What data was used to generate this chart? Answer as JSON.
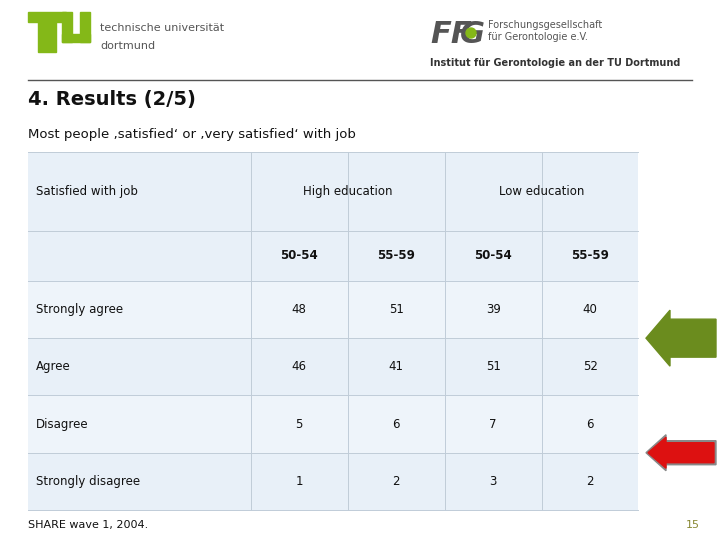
{
  "title": "4. Results (2/5)",
  "subtitle": "Most people ‚satisfied‘ or ‚very satisfied‘ with job",
  "header_row1_col0": "Satisfied with job",
  "header_row1_high": "High education",
  "header_row1_low": "Low education",
  "header_row2": [
    "50-54",
    "55-59",
    "50-54",
    "55-59"
  ],
  "rows": [
    [
      "Strongly agree",
      "48",
      "51",
      "39",
      "40"
    ],
    [
      "Agree",
      "46",
      "41",
      "51",
      "52"
    ],
    [
      "Disagree",
      "5",
      "6",
      "7",
      "6"
    ],
    [
      "Strongly disagree",
      "1",
      "2",
      "3",
      "2"
    ]
  ],
  "footnote": "SHARE wave 1, 2004.",
  "slide_number": "15",
  "background_color": "#ffffff",
  "table_bg_light": "#e8f0f8",
  "table_bg_dark": "#d8e8f4",
  "green_arrow_color": "#6b8c1e",
  "red_arrow_color": "#dd1111",
  "red_arrow_outline": "#888888",
  "tu_green": "#84b818",
  "inst_text": "Institut für Gerontologie an der TU Dortmund"
}
